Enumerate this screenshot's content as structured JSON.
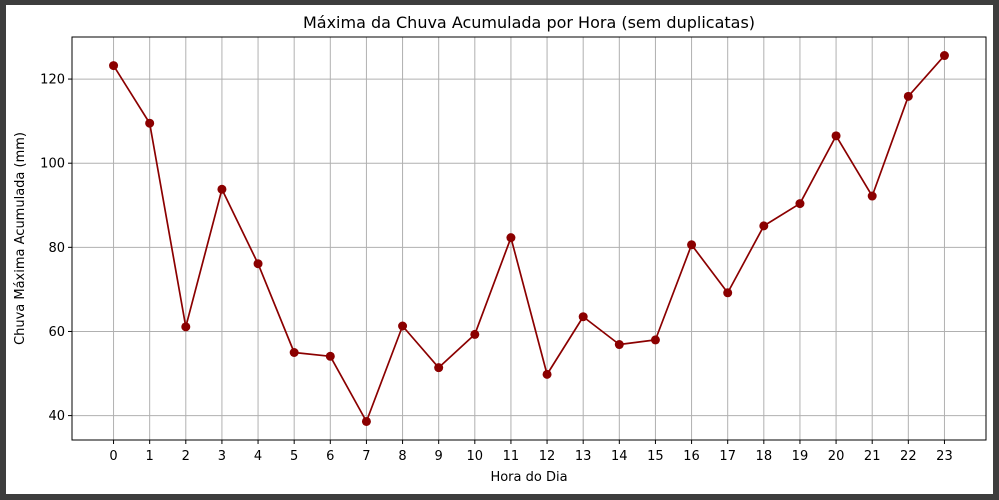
{
  "chart_data": {
    "type": "line",
    "title": "Máxima da Chuva Acumulada por Hora (sem duplicatas)",
    "xlabel": "Hora do Dia",
    "ylabel": "Chuva Máxima Acumulada (mm)",
    "x": [
      0,
      1,
      2,
      3,
      4,
      5,
      6,
      7,
      8,
      9,
      10,
      11,
      12,
      13,
      14,
      15,
      16,
      17,
      18,
      19,
      20,
      21,
      22,
      23
    ],
    "xticks": [
      "0",
      "1",
      "2",
      "3",
      "4",
      "5",
      "6",
      "7",
      "8",
      "9",
      "10",
      "11",
      "12",
      "13",
      "14",
      "15",
      "16",
      "17",
      "18",
      "19",
      "20",
      "21",
      "22",
      "23"
    ],
    "series": [
      {
        "values": [
          123.2,
          109.5,
          61.1,
          93.8,
          76.1,
          55.0,
          54.1,
          38.6,
          61.3,
          51.4,
          59.3,
          82.3,
          49.8,
          63.5,
          56.9,
          58.0,
          80.6,
          69.2,
          85.1,
          90.4,
          106.5,
          92.2,
          115.9,
          125.6
        ],
        "color": "#8b0000",
        "marker": "circle"
      }
    ],
    "xlim": [
      -1.15,
      24.15
    ],
    "ylim": [
      34.2,
      130.0
    ],
    "yticks": [
      40,
      60,
      80,
      100,
      120
    ],
    "grid": true
  }
}
